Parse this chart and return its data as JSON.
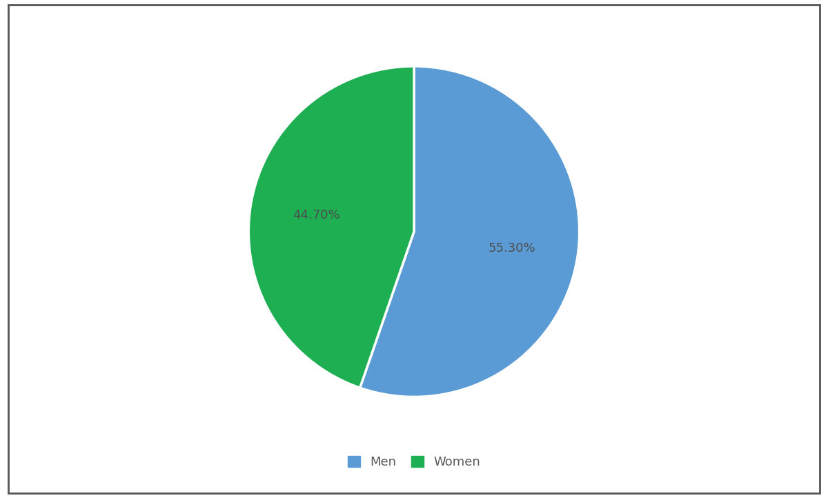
{
  "labels": [
    "Men",
    "Women"
  ],
  "values": [
    55.3,
    44.7
  ],
  "colors": [
    "#5B9BD5",
    "#1DAF52"
  ],
  "autopct_texts": [
    "55.30%",
    "44.70%"
  ],
  "text_color": "#4D4D4D",
  "background_color": "#FFFFFF",
  "legend_labels": [
    "Men",
    "Women"
  ],
  "legend_text_color": "#595959",
  "startangle": 90,
  "label_fontsize": 13,
  "legend_fontsize": 13,
  "figure_width": 12.0,
  "figure_height": 7.22
}
